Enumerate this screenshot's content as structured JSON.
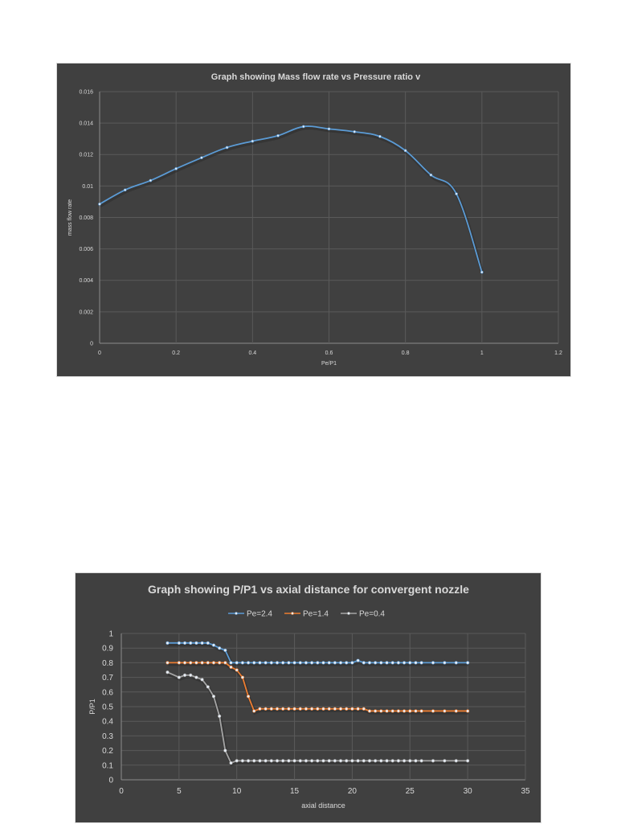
{
  "chart_data": [
    {
      "type": "line",
      "title": "Graph showing Mass flow rate vs Pressure ratio v",
      "xlabel": "Pe/P1",
      "ylabel": "mass flow rate",
      "xlim": [
        0,
        1.2
      ],
      "ylim": [
        0,
        0.016
      ],
      "xticks": [
        "0",
        "0.2",
        "0.4",
        "0.6",
        "0.8",
        "1",
        "1.2"
      ],
      "yticks": [
        "0",
        "0.002",
        "0.004",
        "0.006",
        "0.008",
        "0.01",
        "0.012",
        "0.014",
        "0.016"
      ],
      "grid": true,
      "legend": null,
      "series": [
        {
          "name": "mass flow rate",
          "color": "#5b9bd5",
          "x": [
            0,
            0.0667,
            0.1333,
            0.2,
            0.2667,
            0.3333,
            0.4,
            0.4667,
            0.5333,
            0.6,
            0.6667,
            0.7333,
            0.8,
            0.8667,
            0.9333,
            1.0
          ],
          "y": [
            0.00885,
            0.00975,
            0.01035,
            0.0111,
            0.0118,
            0.01245,
            0.01285,
            0.0132,
            0.01378,
            0.01363,
            0.01345,
            0.01315,
            0.01225,
            0.0107,
            0.0095,
            0.00452
          ]
        }
      ]
    },
    {
      "type": "line",
      "title": "Graph showing P/P1 vs axial distance for convergent nozzle",
      "xlabel": "axial distance",
      "ylabel": "P/P1",
      "xlim": [
        0,
        35
      ],
      "ylim": [
        0,
        1
      ],
      "xticks": [
        "0",
        "5",
        "10",
        "15",
        "20",
        "25",
        "30",
        "35"
      ],
      "yticks": [
        "0",
        "0.1",
        "0.2",
        "0.3",
        "0.4",
        "0.5",
        "0.6",
        "0.7",
        "0.8",
        "0.9",
        "1"
      ],
      "grid": true,
      "legend_position": "top",
      "series": [
        {
          "name": "Pe=2.4",
          "color": "#5b9bd5",
          "x": [
            4,
            5,
            5.5,
            6,
            6.5,
            7,
            7.5,
            8,
            8.5,
            9,
            9.5,
            10,
            10.5,
            11,
            11.5,
            12,
            12.5,
            13,
            13.5,
            14,
            14.5,
            15,
            15.5,
            16,
            16.5,
            17,
            17.5,
            18,
            18.5,
            19,
            19.5,
            20,
            20.5,
            21,
            21.5,
            22,
            22.5,
            23,
            23.5,
            24,
            24.5,
            25,
            25.5,
            26,
            27,
            28,
            29,
            30
          ],
          "y": [
            0.935,
            0.935,
            0.935,
            0.935,
            0.935,
            0.935,
            0.935,
            0.92,
            0.9,
            0.885,
            0.8,
            0.8,
            0.8,
            0.8,
            0.8,
            0.8,
            0.8,
            0.8,
            0.8,
            0.8,
            0.8,
            0.8,
            0.8,
            0.8,
            0.8,
            0.8,
            0.8,
            0.8,
            0.8,
            0.8,
            0.8,
            0.8,
            0.815,
            0.8,
            0.8,
            0.8,
            0.8,
            0.8,
            0.8,
            0.8,
            0.8,
            0.8,
            0.8,
            0.8,
            0.8,
            0.8,
            0.8,
            0.8
          ]
        },
        {
          "name": "Pe=1.4",
          "color": "#ed7d31",
          "x": [
            4,
            5,
            5.5,
            6,
            6.5,
            7,
            7.5,
            8,
            8.5,
            9,
            9.5,
            10,
            10.5,
            11,
            11.5,
            12,
            12.5,
            13,
            13.5,
            14,
            14.5,
            15,
            15.5,
            16,
            16.5,
            17,
            17.5,
            18,
            18.5,
            19,
            19.5,
            20,
            20.5,
            21,
            21.5,
            22,
            22.5,
            23,
            23.5,
            24,
            24.5,
            25,
            25.5,
            26,
            27,
            28,
            29,
            30
          ],
          "y": [
            0.8,
            0.8,
            0.8,
            0.8,
            0.8,
            0.8,
            0.8,
            0.8,
            0.8,
            0.8,
            0.77,
            0.75,
            0.7,
            0.57,
            0.47,
            0.485,
            0.485,
            0.485,
            0.485,
            0.485,
            0.485,
            0.485,
            0.485,
            0.485,
            0.485,
            0.485,
            0.485,
            0.485,
            0.485,
            0.485,
            0.485,
            0.485,
            0.485,
            0.485,
            0.47,
            0.47,
            0.47,
            0.47,
            0.47,
            0.47,
            0.47,
            0.47,
            0.47,
            0.47,
            0.47,
            0.47,
            0.47,
            0.47
          ]
        },
        {
          "name": "Pe=0.4",
          "color": "#a5a5a5",
          "x": [
            4,
            5,
            5.5,
            6,
            6.5,
            7,
            7.5,
            8,
            8.5,
            9,
            9.5,
            10,
            10.5,
            11,
            11.5,
            12,
            12.5,
            13,
            13.5,
            14,
            14.5,
            15,
            15.5,
            16,
            16.5,
            17,
            17.5,
            18,
            18.5,
            19,
            19.5,
            20,
            20.5,
            21,
            21.5,
            22,
            22.5,
            23,
            23.5,
            24,
            24.5,
            25,
            25.5,
            26,
            27,
            28,
            29,
            30
          ],
          "y": [
            0.735,
            0.7,
            0.715,
            0.715,
            0.7,
            0.685,
            0.635,
            0.57,
            0.435,
            0.2,
            0.115,
            0.13,
            0.13,
            0.13,
            0.13,
            0.13,
            0.13,
            0.13,
            0.13,
            0.13,
            0.13,
            0.13,
            0.13,
            0.13,
            0.13,
            0.13,
            0.13,
            0.13,
            0.13,
            0.13,
            0.13,
            0.13,
            0.13,
            0.13,
            0.13,
            0.13,
            0.13,
            0.13,
            0.13,
            0.13,
            0.13,
            0.13,
            0.13,
            0.13,
            0.13,
            0.13,
            0.13,
            0.13
          ]
        }
      ]
    }
  ],
  "page": {
    "background": "#ffffff",
    "chart_background": "#404040",
    "text_color": "#d9d9d9",
    "grid_color": "#5a5a5a"
  }
}
